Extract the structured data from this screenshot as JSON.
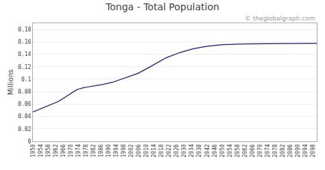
{
  "chart_data": {
    "type": "line",
    "title": "Tonga - Total Population",
    "ylabel": "Millions",
    "annotations": [
      "© theglobalgraph.com"
    ],
    "color": "#3D3580",
    "x": [
      1950,
      1951,
      1952,
      1953,
      1954,
      1955,
      1956,
      1957,
      1958,
      1959,
      1960,
      1961,
      1962,
      1963,
      1964,
      1965,
      1966,
      1967,
      1968,
      1969,
      1970,
      1971,
      1972,
      1973,
      1974,
      1975,
      1976,
      1977,
      1978,
      1979,
      1980,
      1981,
      1982,
      1983,
      1984,
      1985,
      1986,
      1987,
      1988,
      1989,
      1990,
      1991,
      1992,
      1993,
      1994,
      1995,
      1996,
      1997,
      1998,
      1999,
      2000,
      2001,
      2002,
      2003,
      2004,
      2005,
      2006,
      2007,
      2008,
      2009,
      2010,
      2011,
      2012,
      2013,
      2014,
      2015,
      2016,
      2017,
      2018,
      2019,
      2020,
      2021,
      2022,
      2023,
      2024,
      2025,
      2026,
      2027,
      2028,
      2029,
      2030,
      2031,
      2032,
      2033,
      2034,
      2035,
      2036,
      2037,
      2038,
      2039,
      2040,
      2041,
      2042,
      2043,
      2044,
      2045,
      2046,
      2047,
      2048,
      2049,
      2050,
      2051,
      2052,
      2053,
      2054,
      2055,
      2056,
      2057,
      2058,
      2059,
      2060,
      2061,
      2062,
      2063,
      2064,
      2065,
      2066,
      2067,
      2068,
      2069,
      2070,
      2071,
      2072,
      2073,
      2074,
      2075,
      2076,
      2077,
      2078,
      2079,
      2080,
      2081,
      2082,
      2083,
      2084,
      2085,
      2086,
      2087,
      2088,
      2089,
      2090,
      2091,
      2092,
      2093,
      2094,
      2095,
      2096,
      2097,
      2098,
      2099,
      2100
    ],
    "values": [
      0.0472,
      0.0484,
      0.0497,
      0.0508,
      0.052,
      0.0532,
      0.0545,
      0.0558,
      0.057,
      0.0582,
      0.0594,
      0.0606,
      0.062,
      0.0636,
      0.0652,
      0.067,
      0.0689,
      0.0709,
      0.0729,
      0.0749,
      0.077,
      0.079,
      0.081,
      0.0826,
      0.0839,
      0.085,
      0.0858,
      0.0864,
      0.0869,
      0.0873,
      0.0877,
      0.0882,
      0.089,
      0.0896,
      0.09,
      0.0905,
      0.091,
      0.0916,
      0.0921,
      0.0926,
      0.0932,
      0.094,
      0.095,
      0.096,
      0.097,
      0.098,
      0.099,
      0.1,
      0.101,
      0.102,
      0.103,
      0.104,
      0.105,
      0.1062,
      0.1075,
      0.1088,
      0.1101,
      0.1116,
      0.1131,
      0.1148,
      0.1165,
      0.1183,
      0.12,
      0.1218,
      0.1236,
      0.1255,
      0.1273,
      0.1291,
      0.1308,
      0.1323,
      0.1338,
      0.1351,
      0.1364,
      0.1376,
      0.1388,
      0.1399,
      0.141,
      0.1421,
      0.1431,
      0.1441,
      0.145,
      0.1459,
      0.1467,
      0.1475,
      0.1483,
      0.149,
      0.1497,
      0.1503,
      0.1509,
      0.1515,
      0.152,
      0.1525,
      0.153,
      0.1534,
      0.1538,
      0.1541,
      0.1544,
      0.1547,
      0.1549,
      0.1551,
      0.1553,
      0.1555,
      0.1557,
      0.1558,
      0.1559,
      0.156,
      0.1561,
      0.1562,
      0.1563,
      0.1564,
      0.1565,
      0.1566,
      0.1567,
      0.1567,
      0.1568,
      0.1568,
      0.1569,
      0.1569,
      0.157,
      0.157,
      0.157,
      0.1571,
      0.1571,
      0.1571,
      0.1572,
      0.1572,
      0.1572,
      0.1572,
      0.1573,
      0.1573,
      0.1573,
      0.1573,
      0.1574,
      0.1574,
      0.1574,
      0.1574,
      0.1574,
      0.1575,
      0.1575,
      0.1575,
      0.1575,
      0.1575,
      0.1575,
      0.1576,
      0.1576,
      0.1576,
      0.1576,
      0.1576,
      0.1576,
      0.1576,
      0.1576
    ],
    "xlim": [
      1950,
      2100
    ],
    "xticks": [
      1950,
      1954,
      1958,
      1962,
      1966,
      1970,
      1974,
      1978,
      1982,
      1986,
      1990,
      1994,
      1998,
      2002,
      2006,
      2010,
      2014,
      2018,
      2022,
      2026,
      2030,
      2034,
      2038,
      2042,
      2046,
      2050,
      2054,
      2058,
      2062,
      2066,
      2070,
      2074,
      2078,
      2082,
      2086,
      2090,
      2094,
      2098
    ],
    "ylim": [
      0,
      0.19
    ],
    "yticks": [
      0,
      0.02,
      0.04,
      0.06,
      0.08,
      0.1,
      0.12,
      0.14,
      0.16,
      0.18
    ],
    "grid": true
  }
}
